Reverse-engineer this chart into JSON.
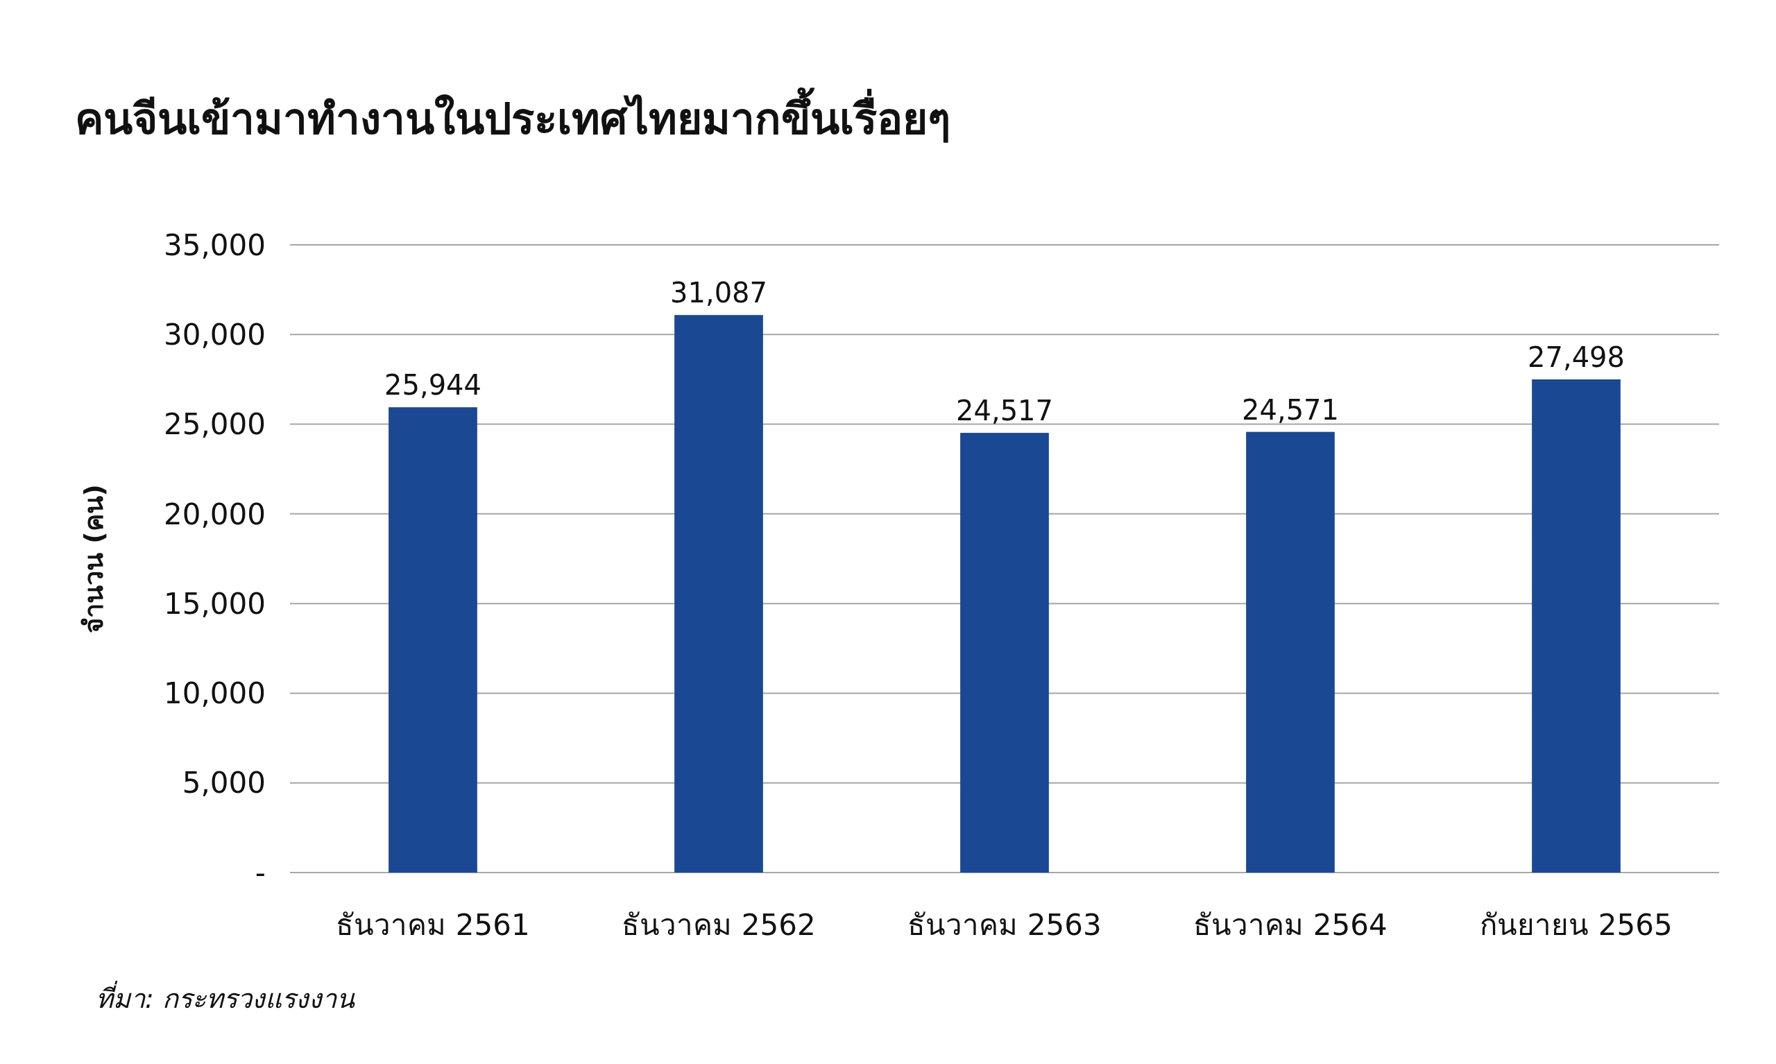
{
  "chart_data": {
    "type": "bar",
    "title": "คนจีนเข้ามาทำงานในประเทศไทยมากขึ้นเรื่อยๆ",
    "ylabel": "จำนวน (คน)",
    "categories": [
      "ธันวาคม 2561",
      "ธันวาคม 2562",
      "ธันวาคม 2563",
      "ธันวาคม 2564",
      "กันยายน 2565"
    ],
    "values": [
      25944,
      31087,
      24517,
      24571,
      27498
    ],
    "color": "#1a4893",
    "ylim": [
      0,
      35000
    ],
    "yticks": [
      {
        "value": 0,
        "label": "-"
      },
      {
        "value": 5000,
        "label": "5,000"
      },
      {
        "value": 10000,
        "label": "10,000"
      },
      {
        "value": 15000,
        "label": "15,000"
      },
      {
        "value": 20000,
        "label": "20,000"
      },
      {
        "value": 25000,
        "label": "25,000"
      },
      {
        "value": 30000,
        "label": "30,000"
      },
      {
        "value": 35000,
        "label": "35,000"
      }
    ],
    "value_labels": [
      "25,944",
      "31,087",
      "24,517",
      "24,571",
      "27,498"
    ],
    "grid": "y",
    "annotations": [
      "ที่มา:  กระทรวงแรงงาน"
    ]
  }
}
